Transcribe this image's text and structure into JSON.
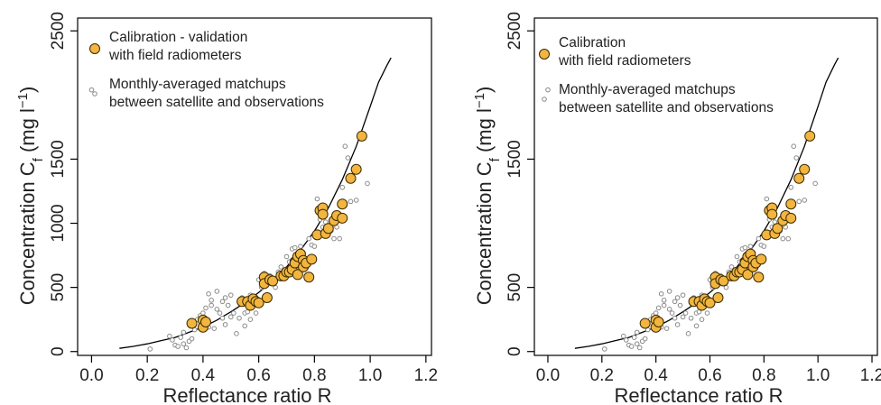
{
  "figure": {
    "panels": [
      {
        "legend": {
          "cal_label_1": "Calibration - validation",
          "cal_label_2": "with field radiometers",
          "sat_label_1": "Monthly-averaged matchups",
          "sat_label_2": "between satellite and observations"
        }
      },
      {
        "legend": {
          "cal_label_1": "Calibration",
          "cal_label_2": "with field radiometers",
          "sat_label_1": "Monthly-averaged matchups",
          "sat_label_2": "between satellite and observations"
        }
      }
    ]
  },
  "chart_data": [
    {
      "type": "scatter",
      "title": "",
      "xlabel": "Reflectance ratio R",
      "ylabel": "Concentration C_f (mg l^-1)",
      "xlim": [
        -0.05,
        1.22
      ],
      "ylim": [
        -30,
        2600
      ],
      "xticks": [
        "0.0",
        "0.2",
        "0.4",
        "0.6",
        "0.8",
        "1.0",
        "1.2"
      ],
      "yticks": [
        "0",
        "500",
        "1000",
        "1500",
        "2500"
      ],
      "grid": false,
      "legend_position": "top-left",
      "colors": {
        "calibration": "#f2b53f",
        "matchups": "#ffffff",
        "curve": "#000000"
      },
      "fit_curve": {
        "x": [
          0.1,
          0.15,
          0.2,
          0.25,
          0.3,
          0.35,
          0.4,
          0.45,
          0.5,
          0.55,
          0.6,
          0.65,
          0.7,
          0.75,
          0.8,
          0.85,
          0.9,
          0.95,
          1.0,
          1.03,
          1.06,
          1.075
        ],
        "y": [
          25,
          40,
          60,
          85,
          110,
          150,
          190,
          245,
          310,
          380,
          460,
          550,
          660,
          790,
          940,
          1120,
          1340,
          1600,
          1910,
          2100,
          2230,
          2290
        ]
      },
      "series": [
        {
          "name": "Calibration - validation with field radiometers",
          "x": [
            0.36,
            0.4,
            0.4,
            0.41,
            0.54,
            0.56,
            0.57,
            0.58,
            0.59,
            0.6,
            0.62,
            0.62,
            0.63,
            0.64,
            0.65,
            0.68,
            0.69,
            0.7,
            0.71,
            0.72,
            0.73,
            0.73,
            0.74,
            0.74,
            0.75,
            0.76,
            0.76,
            0.77,
            0.78,
            0.79,
            0.81,
            0.82,
            0.83,
            0.83,
            0.84,
            0.85,
            0.87,
            0.88,
            0.9,
            0.9,
            0.93,
            0.95,
            0.97
          ],
          "y": [
            220,
            245,
            190,
            230,
            390,
            390,
            360,
            410,
            390,
            380,
            580,
            530,
            420,
            560,
            550,
            590,
            590,
            620,
            620,
            640,
            700,
            690,
            600,
            740,
            760,
            710,
            660,
            690,
            580,
            720,
            910,
            1100,
            1120,
            1070,
            920,
            960,
            1020,
            1060,
            1040,
            1150,
            1350,
            1420,
            1680
          ]
        },
        {
          "name": "Monthly-averaged matchups between satellite and observations",
          "x": [
            0.0,
            0.21,
            0.28,
            0.29,
            0.3,
            0.31,
            0.32,
            0.33,
            0.33,
            0.34,
            0.35,
            0.36,
            0.37,
            0.38,
            0.39,
            0.4,
            0.4,
            0.41,
            0.42,
            0.42,
            0.43,
            0.43,
            0.44,
            0.45,
            0.45,
            0.46,
            0.47,
            0.47,
            0.48,
            0.48,
            0.49,
            0.5,
            0.5,
            0.51,
            0.52,
            0.53,
            0.53,
            0.54,
            0.55,
            0.55,
            0.56,
            0.57,
            0.57,
            0.58,
            0.59,
            0.59,
            0.6,
            0.61,
            0.62,
            0.63,
            0.64,
            0.65,
            0.66,
            0.67,
            0.68,
            0.69,
            0.7,
            0.71,
            0.72,
            0.73,
            0.74,
            0.75,
            0.76,
            0.77,
            0.78,
            0.79,
            0.8,
            0.81,
            0.82,
            0.83,
            0.84,
            0.86,
            0.87,
            0.88,
            0.89,
            0.9,
            0.91,
            0.92,
            0.93,
            0.95,
            0.99
          ],
          "y": [
            2040,
            20,
            120,
            90,
            50,
            40,
            110,
            60,
            150,
            30,
            80,
            100,
            170,
            250,
            280,
            300,
            220,
            340,
            190,
            450,
            400,
            360,
            180,
            330,
            470,
            300,
            260,
            390,
            210,
            420,
            360,
            270,
            440,
            300,
            140,
            260,
            390,
            420,
            200,
            300,
            310,
            250,
            440,
            360,
            300,
            420,
            560,
            500,
            610,
            520,
            590,
            540,
            500,
            620,
            660,
            610,
            740,
            700,
            800,
            810,
            680,
            820,
            710,
            650,
            880,
            830,
            820,
            1190,
            1030,
            970,
            1010,
            940,
            880,
            970,
            880,
            1280,
            1600,
            1510,
            1170,
            1180,
            1310
          ]
        }
      ]
    },
    {
      "type": "scatter",
      "title": "",
      "xlabel": "Reflectance ratio R",
      "ylabel": "Concentration C_f (mg l^-1)",
      "xlim": [
        -0.05,
        1.22
      ],
      "ylim": [
        -30,
        2600
      ],
      "xticks": [
        "0.0",
        "0.2",
        "0.4",
        "0.6",
        "0.8",
        "1.0",
        "1.2"
      ],
      "yticks": [
        "0",
        "500",
        "1500",
        "2500"
      ],
      "grid": false,
      "legend_position": "top-left",
      "colors": {
        "calibration": "#f2b53f",
        "matchups": "#ffffff",
        "curve": "#000000"
      },
      "fit_curve": {
        "x": [
          0.1,
          0.15,
          0.2,
          0.25,
          0.3,
          0.35,
          0.4,
          0.45,
          0.5,
          0.55,
          0.6,
          0.65,
          0.7,
          0.75,
          0.8,
          0.85,
          0.9,
          0.95,
          1.0,
          1.03,
          1.06,
          1.075
        ],
        "y": [
          25,
          40,
          60,
          85,
          110,
          150,
          190,
          245,
          310,
          380,
          460,
          550,
          660,
          790,
          940,
          1120,
          1340,
          1600,
          1910,
          2100,
          2230,
          2290
        ]
      },
      "series": [
        {
          "name": "Calibration with field radiometers",
          "x": [
            0.36,
            0.4,
            0.4,
            0.41,
            0.54,
            0.56,
            0.57,
            0.58,
            0.59,
            0.6,
            0.62,
            0.62,
            0.63,
            0.64,
            0.65,
            0.68,
            0.69,
            0.7,
            0.71,
            0.72,
            0.73,
            0.73,
            0.74,
            0.74,
            0.75,
            0.76,
            0.76,
            0.77,
            0.78,
            0.79,
            0.81,
            0.82,
            0.83,
            0.83,
            0.84,
            0.85,
            0.87,
            0.88,
            0.9,
            0.9,
            0.93,
            0.95,
            0.97
          ],
          "y": [
            220,
            245,
            190,
            230,
            390,
            390,
            360,
            410,
            390,
            380,
            580,
            530,
            420,
            560,
            550,
            590,
            590,
            620,
            620,
            640,
            700,
            690,
            600,
            740,
            760,
            710,
            660,
            690,
            580,
            720,
            910,
            1100,
            1120,
            1070,
            920,
            960,
            1020,
            1060,
            1040,
            1150,
            1350,
            1420,
            1680
          ]
        },
        {
          "name": "Monthly-averaged matchups between satellite and observations",
          "x": [
            0.0,
            0.21,
            0.28,
            0.29,
            0.3,
            0.31,
            0.32,
            0.33,
            0.33,
            0.34,
            0.35,
            0.36,
            0.37,
            0.38,
            0.39,
            0.4,
            0.4,
            0.41,
            0.42,
            0.42,
            0.43,
            0.43,
            0.44,
            0.45,
            0.45,
            0.46,
            0.47,
            0.47,
            0.48,
            0.48,
            0.49,
            0.5,
            0.5,
            0.51,
            0.52,
            0.53,
            0.53,
            0.54,
            0.55,
            0.55,
            0.56,
            0.57,
            0.57,
            0.58,
            0.59,
            0.59,
            0.6,
            0.61,
            0.62,
            0.63,
            0.64,
            0.65,
            0.66,
            0.67,
            0.68,
            0.69,
            0.7,
            0.71,
            0.72,
            0.73,
            0.74,
            0.75,
            0.76,
            0.77,
            0.78,
            0.79,
            0.8,
            0.81,
            0.82,
            0.83,
            0.84,
            0.86,
            0.87,
            0.88,
            0.89,
            0.9,
            0.91,
            0.92,
            0.93,
            0.95,
            0.99
          ],
          "y": [
            2040,
            20,
            120,
            90,
            50,
            40,
            110,
            60,
            150,
            30,
            80,
            100,
            170,
            250,
            280,
            300,
            220,
            340,
            190,
            450,
            400,
            360,
            180,
            330,
            470,
            300,
            260,
            390,
            210,
            420,
            360,
            270,
            440,
            300,
            140,
            260,
            390,
            420,
            200,
            300,
            310,
            250,
            440,
            360,
            300,
            420,
            560,
            500,
            610,
            520,
            590,
            540,
            500,
            620,
            660,
            610,
            740,
            700,
            800,
            810,
            680,
            820,
            710,
            650,
            880,
            830,
            820,
            1190,
            1030,
            970,
            1010,
            940,
            880,
            970,
            880,
            1280,
            1600,
            1510,
            1170,
            1180,
            1310
          ]
        }
      ]
    }
  ]
}
